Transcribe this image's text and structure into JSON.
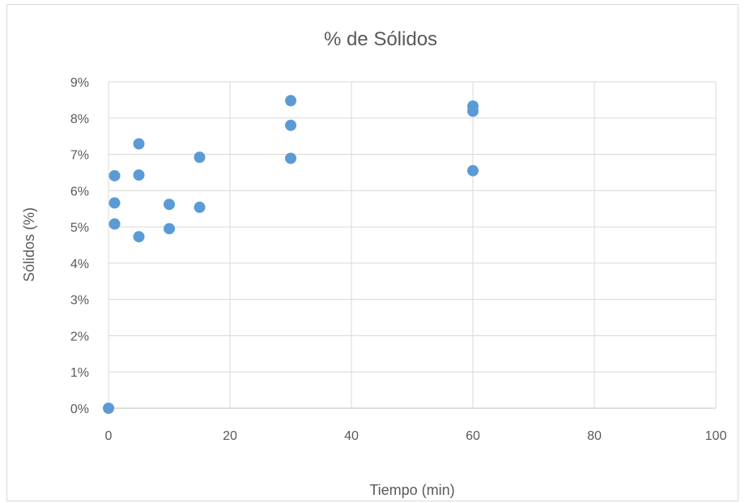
{
  "chart_data": {
    "type": "scatter",
    "title": "% de Sólidos",
    "xlabel": "Tiempo (min)",
    "ylabel": "Sólidos (%)",
    "xlim": [
      0,
      100
    ],
    "ylim": [
      0,
      0.09
    ],
    "x_ticks": [
      "0",
      "20",
      "40",
      "60",
      "80",
      "100"
    ],
    "y_ticks": [
      "0%",
      "1%",
      "2%",
      "3%",
      "4%",
      "5%",
      "6%",
      "7%",
      "8%",
      "9%"
    ],
    "grid": true,
    "legend": "none",
    "marker_color": "#5b9bd5",
    "series": [
      {
        "points": [
          {
            "x": 0,
            "y": 0.0
          },
          {
            "x": 1,
            "y": 0.0641
          },
          {
            "x": 1,
            "y": 0.0566
          },
          {
            "x": 1,
            "y": 0.0508
          },
          {
            "x": 5,
            "y": 0.0729
          },
          {
            "x": 5,
            "y": 0.0643
          },
          {
            "x": 5,
            "y": 0.0473
          },
          {
            "x": 10,
            "y": 0.0562
          },
          {
            "x": 10,
            "y": 0.0495
          },
          {
            "x": 15,
            "y": 0.0692
          },
          {
            "x": 15,
            "y": 0.0554
          },
          {
            "x": 30,
            "y": 0.0848
          },
          {
            "x": 30,
            "y": 0.078
          },
          {
            "x": 30,
            "y": 0.0689
          },
          {
            "x": 60,
            "y": 0.0833
          },
          {
            "x": 60,
            "y": 0.0819
          },
          {
            "x": 60,
            "y": 0.0655
          }
        ]
      }
    ]
  }
}
